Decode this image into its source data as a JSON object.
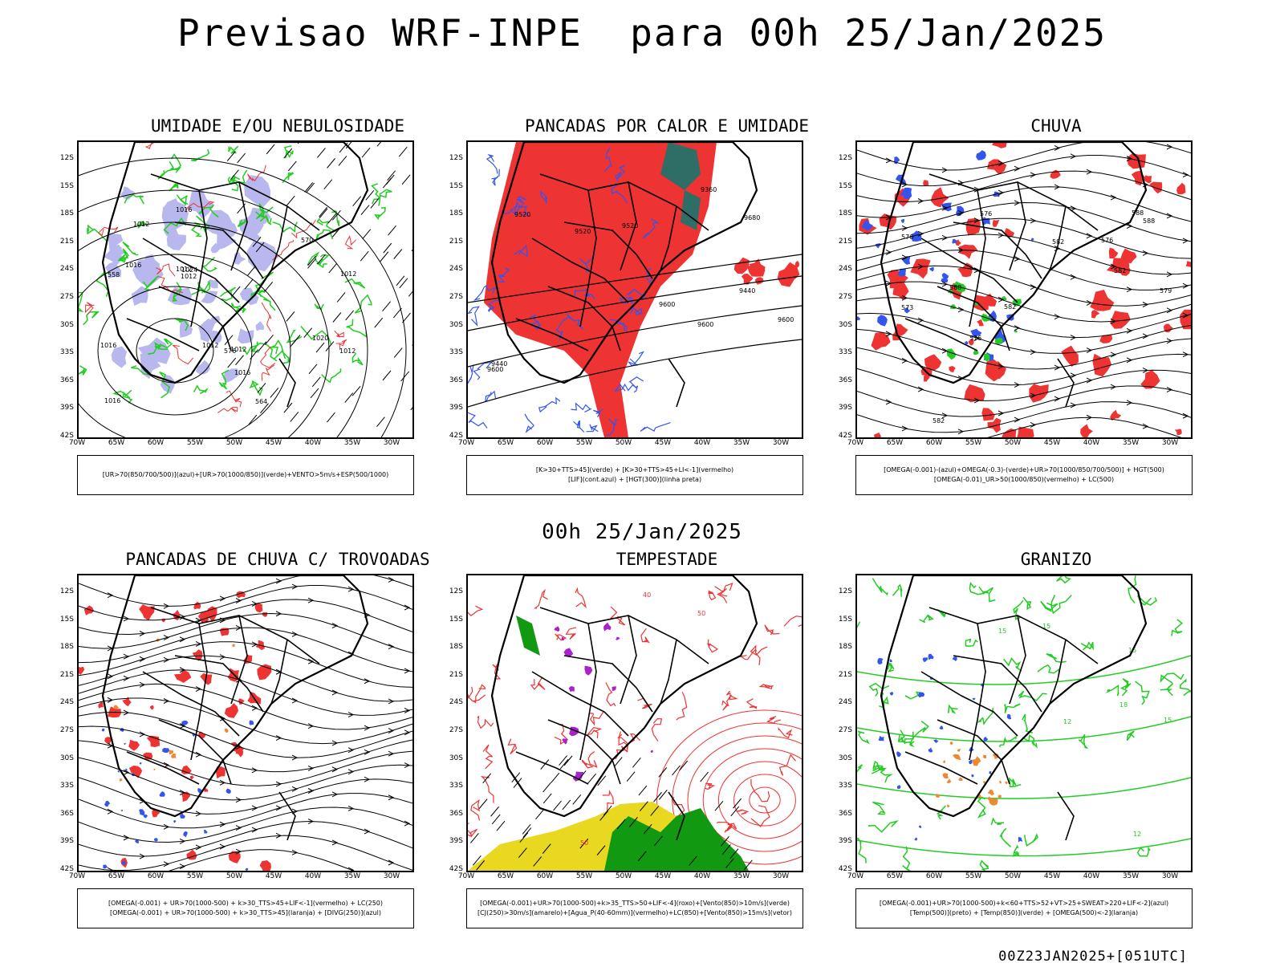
{
  "header": {
    "title": "Previsao WRF-INPE  para 00h 25/Jan/2025",
    "mid_stamp": "00h 25/Jan/2025",
    "run_stamp": "00Z23JAN2025+[051UTC]"
  },
  "axes": {
    "lat_labels": [
      "12S",
      "15S",
      "18S",
      "21S",
      "24S",
      "27S",
      "30S",
      "33S",
      "36S",
      "39S",
      "42S"
    ],
    "lon_labels": [
      "70W",
      "65W",
      "60W",
      "55W",
      "50W",
      "45W",
      "40W",
      "35W",
      "30W"
    ]
  },
  "colors": {
    "blue": "#3355ee",
    "lavender": "#b8b8ee",
    "green": "#22cc22",
    "red": "#ee3333",
    "orange": "#ee8833",
    "purple": "#aa22cc",
    "teal": "#2e6e66",
    "yellow": "#e8d820",
    "dark_green": "#119911"
  },
  "panels": [
    {
      "id": "umidade",
      "title": "UMIDADE E/OU NEBULOSIDADE",
      "legend_lines": [
        "[UR>70(850/700/500)](azul)+[UR>70(1000/850)](verde)+VENTO>5m/s+ESP(500/1000)"
      ],
      "contour_labels": [
        "1012",
        "1012",
        "1012",
        "1016",
        "1016",
        "1016",
        "1012",
        "1012",
        "1020",
        "1016",
        "1024",
        "576",
        "570",
        "564",
        "558",
        "1012",
        "1012",
        "1016"
      ]
    },
    {
      "id": "pancadas-calor",
      "title": "PANCADAS POR CALOR E UMIDADE",
      "legend_lines": [
        "[K>30+TTS>45](verde) + [K>30+TTS>45+LI<-1](vermelho)",
        "[LIF](cont.azul) + [HGT(300)](linha preta)"
      ],
      "contour_labels": [
        "9600",
        "9600",
        "9680",
        "9600",
        "9520",
        "9600",
        "9520",
        "9440",
        "9440",
        "9360",
        "9520"
      ]
    },
    {
      "id": "chuva",
      "title": "CHUVA",
      "legend_lines": [
        "[OMEGA(-0.001)-(azul)+OMEGA(-0.3)-(verde)+UR>70(1000/850/700/500)] + HGT(500)",
        "[OMEGA(-0.01)_UR>50(1000/850)(vermelho) + LC(500)"
      ],
      "contour_labels": [
        "588",
        "588",
        "582",
        "582",
        "576",
        "576",
        "582",
        "588",
        "582",
        "576",
        "573",
        "579",
        "576"
      ]
    },
    {
      "id": "pancadas-trovoadas",
      "title": "PANCADAS DE CHUVA C/ TROVOADAS",
      "legend_lines": [
        "[OMEGA(-0.001) + UR>70(1000-500) + k>30_TTS>45+LIF<-1](vermelho) + LC(250)",
        "[OMEGA(-0.001) + UR>70(1000-500) + k>30_TTS>45](laranja) + [DIVG(250)](azul)"
      ],
      "contour_labels": []
    },
    {
      "id": "tempestade",
      "title": "TEMPESTADE",
      "legend_lines": [
        "[OMEGA(-0.001)+UR>70(1000-500)+k>35_TTS>50+LIF<-4](roxo)+[Vento(850)>10m/s](verde)",
        "[CJ(250)>30m/s](amarelo)+[Agua_P(40-60mm)](vermelho)+LC(850)+[Vento(850)>15m/s](vetor)"
      ],
      "contour_labels": [
        "50",
        "50",
        "40"
      ]
    },
    {
      "id": "granizo",
      "title": "GRANIZO",
      "legend_lines": [
        "[OMEGA(-0.001)+UR>70(1000-500)+k<60+TTS>52+VT>25+SWEAT>220+LIF<-2](azul)",
        "[Temp(500)](preto) + [Temp(850)](verde) + [OMEGA(500)<-2](laranja)"
      ],
      "contour_labels": [
        "15",
        "15",
        "15",
        "12",
        "18",
        "15",
        "12"
      ]
    }
  ]
}
